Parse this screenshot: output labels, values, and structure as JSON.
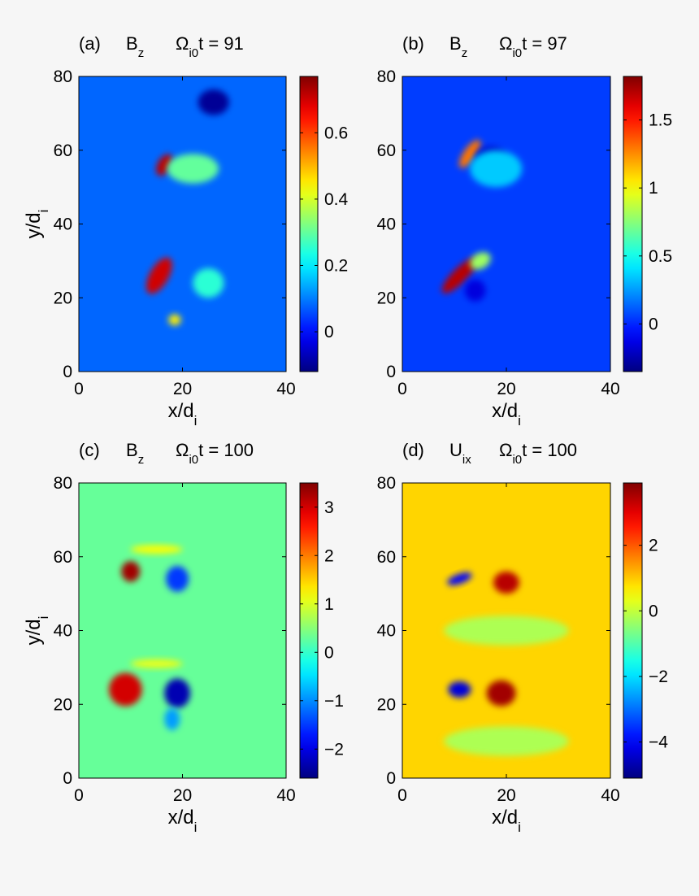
{
  "chart_data": [
    {
      "type": "heatmap",
      "panel": "(a)",
      "quantity": "B",
      "quantity_sub": "z",
      "time_symbol": "Ω",
      "time_sub": "i0",
      "time_text": "t = 91",
      "xlabel": "x/d",
      "xlabel_sub": "i",
      "ylabel": "y/d",
      "ylabel_sub": "i",
      "xlim": [
        0,
        40
      ],
      "ylim": [
        0,
        80
      ],
      "xticks": [
        0,
        20,
        40
      ],
      "yticks": [
        0,
        20,
        40,
        60,
        80
      ],
      "colorbar": {
        "min": -0.12,
        "max": 0.77,
        "ticks": [
          0,
          0.2,
          0.4,
          0.6
        ],
        "tick_labels": [
          "0",
          "0.2",
          "0.4",
          "0.6"
        ]
      },
      "background_value": 0.08,
      "features": [
        {
          "x": 16.5,
          "y": 56,
          "rx": 1.3,
          "ry": 3.2,
          "angle": 30,
          "value": 0.72
        },
        {
          "x": 15.5,
          "y": 26,
          "rx": 1.8,
          "ry": 5.5,
          "angle": 30,
          "value": 0.7
        },
        {
          "x": 18.5,
          "y": 14,
          "rx": 1.2,
          "ry": 1.5,
          "angle": 0,
          "value": 0.45
        },
        {
          "x": 26,
          "y": 73,
          "rx": 3.0,
          "ry": 3.5,
          "angle": 0,
          "value": -0.1
        },
        {
          "x": 25,
          "y": 24,
          "rx": 3.0,
          "ry": 4.0,
          "angle": 0,
          "value": 0.25
        },
        {
          "x": 22,
          "y": 55,
          "rx": 5.0,
          "ry": 4.0,
          "angle": 0,
          "value": 0.3
        }
      ]
    },
    {
      "type": "heatmap",
      "panel": "(b)",
      "quantity": "B",
      "quantity_sub": "z",
      "time_symbol": "Ω",
      "time_sub": "i0",
      "time_text": "t = 97",
      "xlabel": "x/d",
      "xlabel_sub": "i",
      "ylabel": "",
      "ylabel_sub": "",
      "xlim": [
        0,
        40
      ],
      "ylim": [
        0,
        80
      ],
      "xticks": [
        0,
        20,
        40
      ],
      "yticks": [
        0,
        20,
        40,
        60,
        80
      ],
      "colorbar": {
        "min": -0.35,
        "max": 1.82,
        "ticks": [
          0,
          0.5,
          1,
          1.5
        ],
        "tick_labels": [
          "0",
          "0.5",
          "1",
          "1.5"
        ]
      },
      "background_value": 0.05,
      "features": [
        {
          "x": 13,
          "y": 59,
          "rx": 1.2,
          "ry": 4.5,
          "angle": 35,
          "value": 1.3
        },
        {
          "x": 11,
          "y": 26,
          "rx": 1.4,
          "ry": 6.5,
          "angle": 45,
          "value": 1.7
        },
        {
          "x": 15,
          "y": 30,
          "rx": 1.5,
          "ry": 3.0,
          "angle": 60,
          "value": 0.8
        },
        {
          "x": 17,
          "y": 58,
          "rx": 3.0,
          "ry": 3.0,
          "angle": 0,
          "value": -0.2
        },
        {
          "x": 14,
          "y": 22,
          "rx": 2.0,
          "ry": 3.0,
          "angle": 0,
          "value": -0.15
        },
        {
          "x": 18,
          "y": 55,
          "rx": 5.0,
          "ry": 5.0,
          "angle": 0,
          "value": 0.35
        }
      ]
    },
    {
      "type": "heatmap",
      "panel": "(c)",
      "quantity": "B",
      "quantity_sub": "z",
      "time_symbol": "Ω",
      "time_sub": "i0",
      "time_text": "t = 100",
      "xlabel": "x/d",
      "xlabel_sub": "i",
      "ylabel": "y/d",
      "ylabel_sub": "i",
      "xlim": [
        0,
        40
      ],
      "ylim": [
        0,
        80
      ],
      "xticks": [
        0,
        20,
        40
      ],
      "yticks": [
        0,
        20,
        40,
        60,
        80
      ],
      "colorbar": {
        "min": -2.6,
        "max": 3.5,
        "ticks": [
          -2,
          -1,
          0,
          1,
          2,
          3
        ],
        "tick_labels": [
          "−2",
          "−1",
          "0",
          "1",
          "2",
          "3"
        ]
      },
      "background_value": 0.3,
      "features": [
        {
          "x": 10,
          "y": 56,
          "rx": 1.8,
          "ry": 2.8,
          "angle": 0,
          "value": 3.3
        },
        {
          "x": 9,
          "y": 24,
          "rx": 3.2,
          "ry": 4.5,
          "angle": 0,
          "value": 3.0
        },
        {
          "x": 19,
          "y": 54,
          "rx": 2.2,
          "ry": 3.5,
          "angle": 0,
          "value": -1.5
        },
        {
          "x": 19,
          "y": 23,
          "rx": 2.5,
          "ry": 4.0,
          "angle": 0,
          "value": -2.3
        },
        {
          "x": 18,
          "y": 16,
          "rx": 1.5,
          "ry": 3.0,
          "angle": 0,
          "value": -0.9
        },
        {
          "x": 15,
          "y": 62,
          "rx": 5.0,
          "ry": 1.2,
          "angle": 0,
          "value": 1.2
        },
        {
          "x": 15,
          "y": 31,
          "rx": 5.0,
          "ry": 1.2,
          "angle": 0,
          "value": 1.1
        }
      ]
    },
    {
      "type": "heatmap",
      "panel": "(d)",
      "quantity": "U",
      "quantity_sub": "ix",
      "time_symbol": "Ω",
      "time_sub": "i0",
      "time_text": "t = 100",
      "xlabel": "x/d",
      "xlabel_sub": "i",
      "ylabel": "",
      "ylabel_sub": "",
      "xlim": [
        0,
        40
      ],
      "ylim": [
        0,
        80
      ],
      "xticks": [
        0,
        20,
        40
      ],
      "yticks": [
        0,
        20,
        40,
        60,
        80
      ],
      "colorbar": {
        "min": -5.1,
        "max": 3.9,
        "ticks": [
          -4,
          -2,
          0,
          2
        ],
        "tick_labels": [
          "−4",
          "−2",
          "0",
          "2"
        ]
      },
      "background_value": 0.9,
      "features": [
        {
          "x": 20,
          "y": 53,
          "rx": 2.5,
          "ry": 3.0,
          "angle": 0,
          "value": 3.4
        },
        {
          "x": 19,
          "y": 23,
          "rx": 2.8,
          "ry": 3.5,
          "angle": 0,
          "value": 3.6
        },
        {
          "x": 11,
          "y": 54,
          "rx": 2.5,
          "ry": 1.3,
          "angle": -20,
          "value": -4.0
        },
        {
          "x": 11,
          "y": 24,
          "rx": 2.2,
          "ry": 2.2,
          "angle": 0,
          "value": -4.3
        },
        {
          "x": 20,
          "y": 40,
          "rx": 12.0,
          "ry": 4.0,
          "angle": 0,
          "value": -0.2
        },
        {
          "x": 20,
          "y": 10,
          "rx": 12.0,
          "ry": 4.0,
          "angle": 0,
          "value": -0.2
        }
      ]
    }
  ]
}
